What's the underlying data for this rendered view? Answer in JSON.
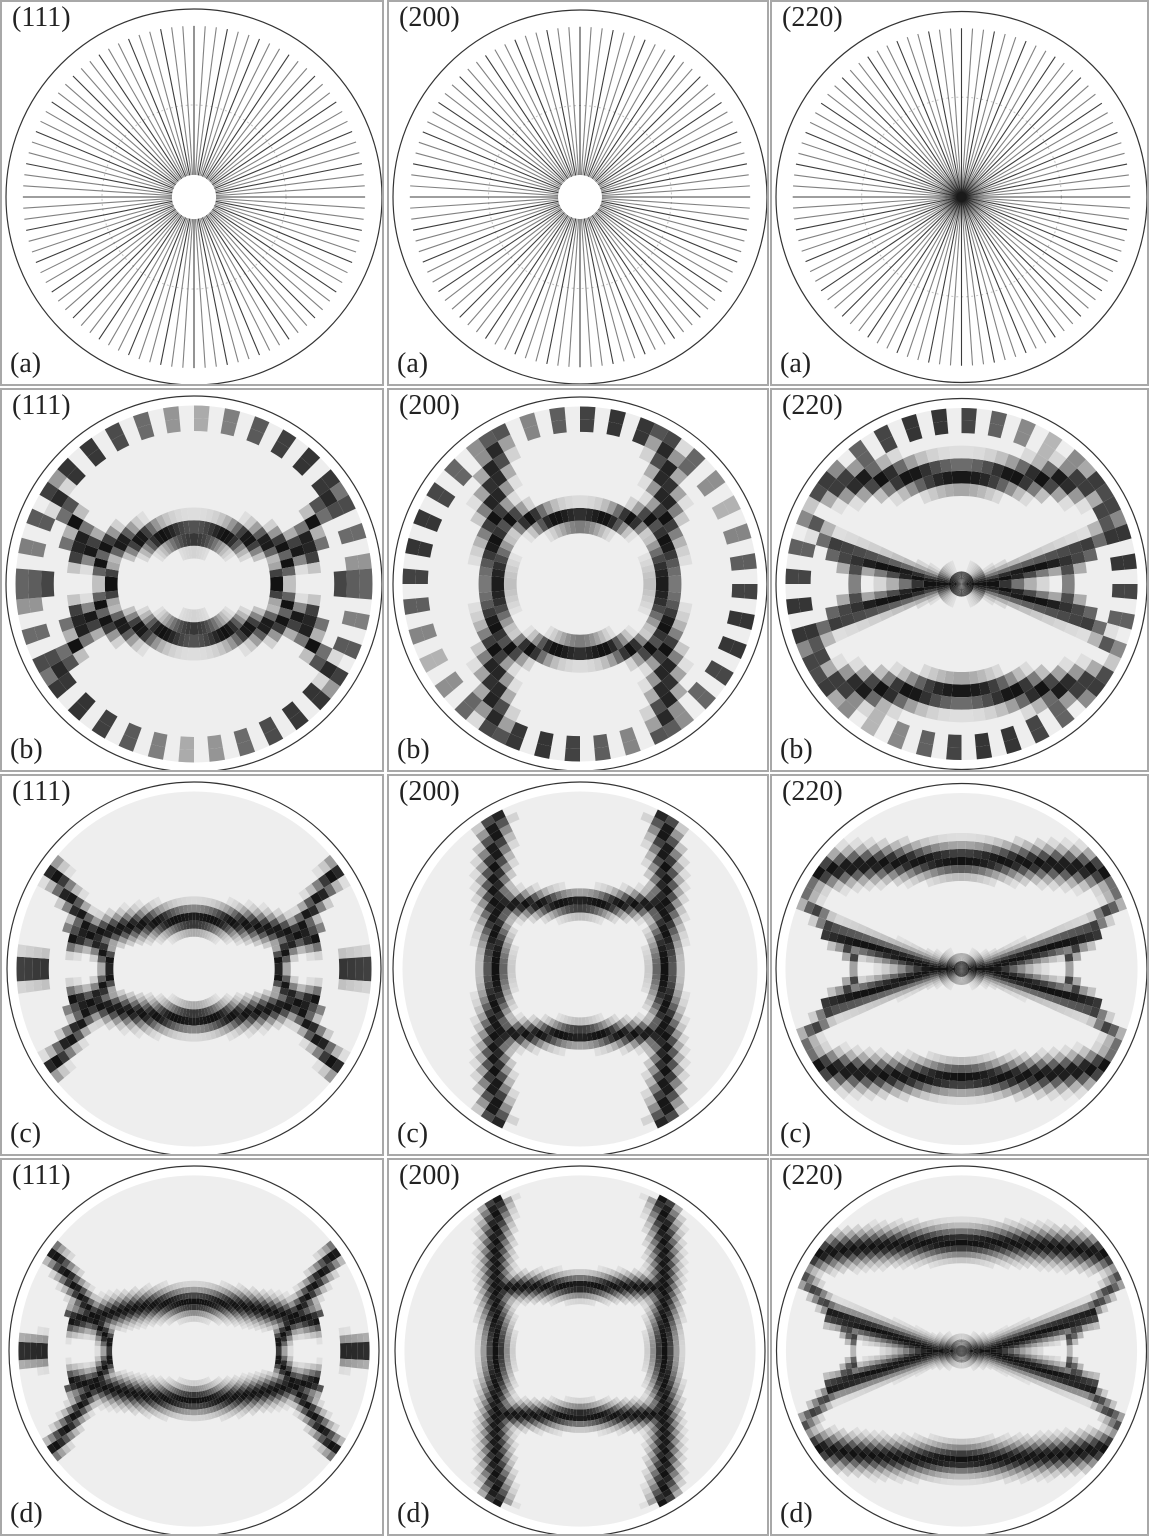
{
  "figure": {
    "columns": [
      {
        "plane": "(111)"
      },
      {
        "plane": "(200)"
      },
      {
        "plane": "(220)"
      }
    ],
    "rows": [
      {
        "case": "(a)",
        "style": "rays"
      },
      {
        "case": "(b)",
        "style": "sectors-coarse"
      },
      {
        "case": "(c)",
        "style": "sectors-fine"
      },
      {
        "case": "(d)",
        "style": "smooth"
      }
    ],
    "colors": {
      "ink": "#1a1a1a",
      "dark_band": "#141414",
      "mid_gray": "#8a8a8a",
      "light_fill": "#eeeeee",
      "frame": "#a8a8a8"
    }
  }
}
